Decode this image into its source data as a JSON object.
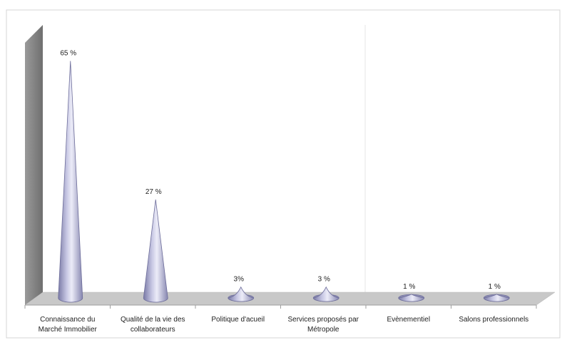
{
  "chart_data": {
    "type": "bar",
    "style": "3d-cone",
    "categories": [
      [
        "Connaissance du",
        "Marché Immobilier"
      ],
      [
        "Qualité de la vie des",
        "collaborateurs"
      ],
      [
        "Politique d'acueil"
      ],
      [
        "Services proposés par",
        "Métropole"
      ],
      [
        "Evènementiel"
      ],
      [
        "Salons professionnels"
      ]
    ],
    "values": [
      65,
      27,
      3,
      3,
      1,
      1
    ],
    "data_labels": [
      "65 %",
      "27 %",
      "3%",
      "3 %",
      "1 %",
      "1 %"
    ],
    "ylim": [
      0,
      70
    ],
    "grid": false,
    "legend": "none",
    "colors": {
      "cone_light": "#e6e6f4",
      "cone_mid": "#b4b4d6",
      "cone_dark": "#6d6d9a",
      "floor": "#c9c9c9",
      "wall": "#8c8c8c",
      "panel_border": "#cfcfcf"
    }
  }
}
